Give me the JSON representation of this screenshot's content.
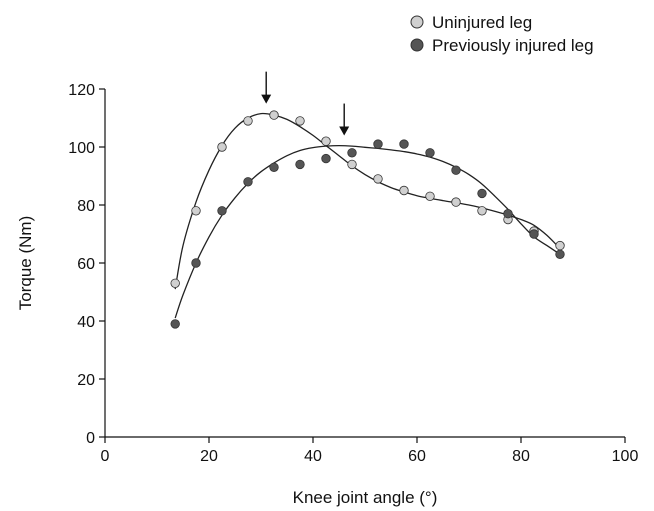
{
  "chart_data": {
    "type": "scatter",
    "xlabel": "Knee joint angle (°)",
    "ylabel": "Torque (Nm)",
    "xlim": [
      0,
      100
    ],
    "ylim": [
      0,
      120
    ],
    "xticks": [
      "0",
      "20",
      "40",
      "60",
      "80",
      "100"
    ],
    "yticks": [
      "0",
      "20",
      "40",
      "60",
      "80",
      "100",
      "120"
    ],
    "grid": false,
    "legend_position": "top-right",
    "series": [
      {
        "name": "Uninjured leg",
        "color": "#d0d0d0",
        "x": [
          13.5,
          17.5,
          22.5,
          27.5,
          32.5,
          37.5,
          42.5,
          47.5,
          52.5,
          57.5,
          62.5,
          67.5,
          72.5,
          77.5,
          82.5,
          87.5
        ],
        "y": [
          53,
          78,
          100,
          109,
          111,
          109,
          102,
          94,
          89,
          85,
          83,
          81,
          78,
          75,
          71,
          66
        ],
        "peak_angle": 31,
        "curve_x": [
          13.5,
          15,
          17.5,
          20,
          22.5,
          25,
          27.5,
          30,
          32.5,
          35,
          37.5,
          40,
          42.5,
          45,
          47.5,
          50,
          52.5,
          55,
          57.5,
          60,
          62.5,
          65,
          67.5,
          70,
          72.5,
          75,
          77.5,
          80,
          82.5,
          85,
          87.5
        ],
        "curve_y": [
          51,
          66,
          81,
          92,
          100.5,
          106.5,
          110,
          111.5,
          111,
          109.5,
          107,
          104,
          100.5,
          97,
          93.5,
          90.5,
          88,
          86,
          84.5,
          83.2,
          82.3,
          81.5,
          80.8,
          80,
          79,
          77.8,
          76.5,
          75,
          73,
          69.5,
          65
        ]
      },
      {
        "name": "Previously injured leg",
        "color": "#555555",
        "x": [
          13.5,
          17.5,
          22.5,
          27.5,
          32.5,
          37.5,
          42.5,
          47.5,
          52.5,
          57.5,
          62.5,
          67.5,
          72.5,
          77.5,
          82.5,
          87.5
        ],
        "y": [
          39,
          60,
          78,
          88,
          93,
          94,
          96,
          98,
          101,
          101,
          98,
          92,
          84,
          77,
          70,
          63
        ],
        "peak_angle": 46,
        "curve_x": [
          13.5,
          15,
          17.5,
          20,
          22.5,
          25,
          27.5,
          30,
          32.5,
          35,
          37.5,
          40,
          42.5,
          45,
          47.5,
          50,
          52.5,
          55,
          57.5,
          60,
          62.5,
          65,
          67.5,
          70,
          72.5,
          75,
          77.5,
          80,
          82.5,
          85,
          87.5
        ],
        "curve_y": [
          41,
          49,
          60,
          69,
          76.5,
          82.5,
          87.5,
          91.5,
          94.5,
          97,
          98.8,
          99.8,
          100.3,
          100.5,
          100.3,
          99.9,
          99.5,
          99,
          98.4,
          97.6,
          96.5,
          95,
          93,
          90.5,
          87.2,
          83,
          78.5,
          73.5,
          69,
          66,
          63
        ]
      }
    ]
  }
}
